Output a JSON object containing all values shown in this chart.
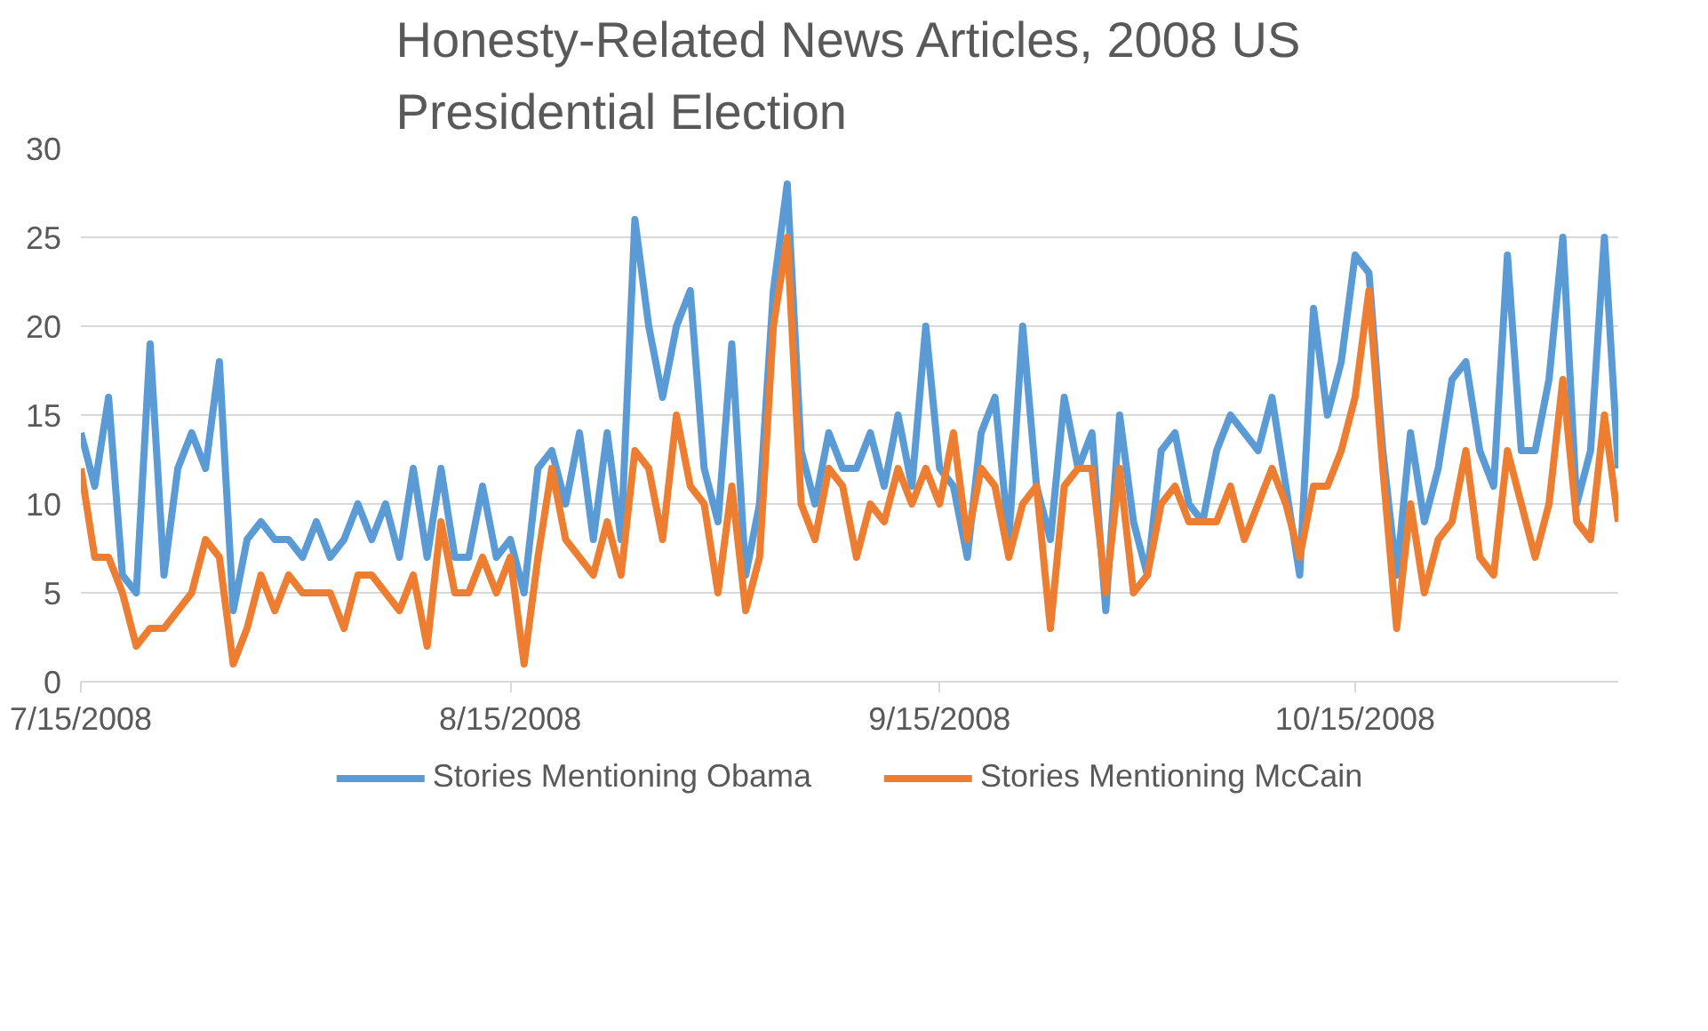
{
  "chart_data": {
    "type": "line",
    "title": "Honesty-Related News Articles, 2008 US Presidential Election",
    "x": [
      "2008-07-15",
      "2008-07-16",
      "2008-07-17",
      "2008-07-18",
      "2008-07-19",
      "2008-07-20",
      "2008-07-21",
      "2008-07-22",
      "2008-07-23",
      "2008-07-24",
      "2008-07-25",
      "2008-07-26",
      "2008-07-27",
      "2008-07-28",
      "2008-07-29",
      "2008-07-30",
      "2008-07-31",
      "2008-08-01",
      "2008-08-02",
      "2008-08-03",
      "2008-08-04",
      "2008-08-05",
      "2008-08-06",
      "2008-08-07",
      "2008-08-08",
      "2008-08-09",
      "2008-08-10",
      "2008-08-11",
      "2008-08-12",
      "2008-08-13",
      "2008-08-14",
      "2008-08-15",
      "2008-08-16",
      "2008-08-17",
      "2008-08-18",
      "2008-08-19",
      "2008-08-20",
      "2008-08-21",
      "2008-08-22",
      "2008-08-23",
      "2008-08-24",
      "2008-08-25",
      "2008-08-26",
      "2008-08-27",
      "2008-08-28",
      "2008-08-29",
      "2008-08-30",
      "2008-08-31",
      "2008-09-01",
      "2008-09-02",
      "2008-09-03",
      "2008-09-04",
      "2008-09-05",
      "2008-09-06",
      "2008-09-07",
      "2008-09-08",
      "2008-09-09",
      "2008-09-10",
      "2008-09-11",
      "2008-09-12",
      "2008-09-13",
      "2008-09-14",
      "2008-09-15",
      "2008-09-16",
      "2008-09-17",
      "2008-09-18",
      "2008-09-19",
      "2008-09-20",
      "2008-09-21",
      "2008-09-22",
      "2008-09-23",
      "2008-09-24",
      "2008-09-25",
      "2008-09-26",
      "2008-09-27",
      "2008-09-28",
      "2008-09-29",
      "2008-09-30",
      "2008-10-01",
      "2008-10-02",
      "2008-10-03",
      "2008-10-04",
      "2008-10-05",
      "2008-10-06",
      "2008-10-07",
      "2008-10-08",
      "2008-10-09",
      "2008-10-10",
      "2008-10-11",
      "2008-10-12",
      "2008-10-13",
      "2008-10-14",
      "2008-10-15",
      "2008-10-16",
      "2008-10-17",
      "2008-10-18",
      "2008-10-19",
      "2008-10-20",
      "2008-10-21",
      "2008-10-22",
      "2008-10-23",
      "2008-10-24",
      "2008-10-25",
      "2008-10-26",
      "2008-10-27",
      "2008-10-28",
      "2008-10-29",
      "2008-10-30",
      "2008-10-31",
      "2008-11-01",
      "2008-11-02",
      "2008-11-03"
    ],
    "series": [
      {
        "name": "Stories Mentioning Obama",
        "color": "#5b9bd5",
        "values": [
          14,
          11,
          16,
          6,
          5,
          19,
          6,
          12,
          14,
          12,
          18,
          4,
          8,
          9,
          8,
          8,
          7,
          9,
          7,
          8,
          10,
          8,
          10,
          7,
          12,
          7,
          12,
          7,
          7,
          11,
          7,
          8,
          5,
          12,
          13,
          10,
          14,
          8,
          14,
          8,
          26,
          20,
          16,
          20,
          22,
          12,
          9,
          19,
          6,
          10,
          22,
          28,
          13,
          10,
          14,
          12,
          12,
          14,
          11,
          15,
          11,
          20,
          12,
          11,
          7,
          14,
          16,
          8,
          20,
          11,
          8,
          16,
          12,
          14,
          4,
          15,
          9,
          6,
          13,
          14,
          10,
          9,
          13,
          15,
          14,
          13,
          16,
          11,
          6,
          21,
          15,
          18,
          24,
          23,
          13,
          6,
          14,
          9,
          12,
          17,
          18,
          13,
          11,
          24,
          13,
          13,
          17,
          25,
          10,
          13,
          25,
          12
        ]
      },
      {
        "name": "Stories Mentioning McCain",
        "color": "#ed7d31",
        "values": [
          12,
          7,
          7,
          5,
          2,
          3,
          3,
          4,
          5,
          8,
          7,
          1,
          3,
          6,
          4,
          6,
          5,
          5,
          5,
          3,
          6,
          6,
          5,
          4,
          6,
          2,
          9,
          5,
          5,
          7,
          5,
          7,
          1,
          7,
          12,
          8,
          7,
          6,
          9,
          6,
          13,
          12,
          8,
          15,
          11,
          10,
          5,
          11,
          4,
          7,
          20,
          25,
          10,
          8,
          12,
          11,
          7,
          10,
          9,
          12,
          10,
          12,
          10,
          14,
          8,
          12,
          11,
          7,
          10,
          11,
          3,
          11,
          12,
          12,
          5,
          12,
          5,
          6,
          10,
          11,
          9,
          9,
          9,
          11,
          8,
          10,
          12,
          10,
          7,
          11,
          11,
          13,
          16,
          22,
          12,
          3,
          10,
          5,
          8,
          9,
          13,
          7,
          6,
          13,
          10,
          7,
          10,
          17,
          9,
          8,
          15,
          9
        ]
      }
    ],
    "xlim": [
      "2008-07-15",
      "2008-11-03"
    ],
    "xticks": [
      {
        "value": "2008-07-15",
        "label": "7/15/2008"
      },
      {
        "value": "2008-08-15",
        "label": "8/15/2008"
      },
      {
        "value": "2008-09-15",
        "label": "9/15/2008"
      },
      {
        "value": "2008-10-15",
        "label": "10/15/2008"
      }
    ],
    "ylim": [
      0,
      30
    ],
    "yticks": [
      0,
      5,
      10,
      15,
      20,
      25,
      30
    ],
    "grid": "y",
    "legend": "bottom",
    "marker": "none",
    "line_style": "solid"
  }
}
